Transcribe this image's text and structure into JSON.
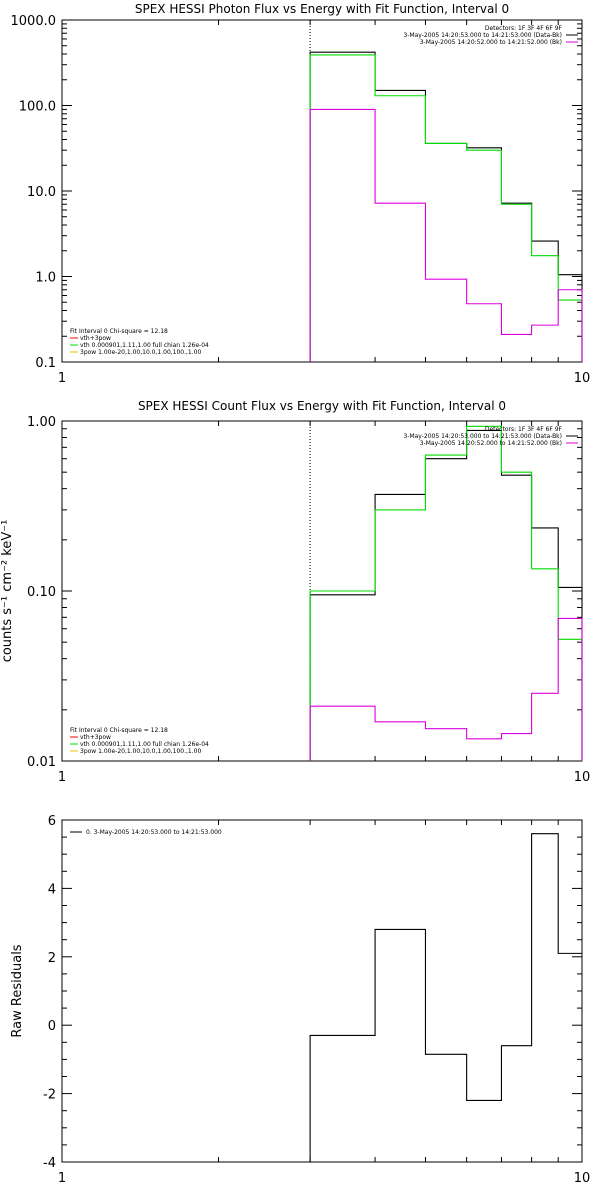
{
  "chart_data": [
    {
      "type": "line",
      "title": "SPEX HESSI Photon Flux vs Energy with Fit Function, Interval 0",
      "xlabel": "",
      "ylabel": "",
      "xscale": "log",
      "yscale": "log",
      "xlim": [
        1,
        10
      ],
      "ylim": [
        0.1,
        1000
      ],
      "x_ticks": [
        "1",
        "10"
      ],
      "y_ticks": [
        {
          "v": 1000,
          "label": "1000.0"
        },
        {
          "v": 100,
          "label": "100.0"
        },
        {
          "v": 10,
          "label": "10.0"
        },
        {
          "v": 1,
          "label": "1.0"
        },
        {
          "v": 0.1,
          "label": "0.1"
        }
      ],
      "vline_x": 3,
      "legend_top": [
        {
          "text": "Detectors: 1F 3F 4F 6F 9F",
          "color": ""
        },
        {
          "text": "3-May-2005 14:20:53.000 to 14:21:53.000 (Data-Bk)",
          "color": "#000000"
        },
        {
          "text": "3-May-2005 14:20:52.000 to 14:21:52.000 (Bk)",
          "color": "#dd00dd"
        }
      ],
      "legend_bottom": [
        {
          "text": "Fit Interval 0   Chi-square = 12.18",
          "color": ""
        },
        {
          "text": "vth+3pow",
          "color": "#ff0000"
        },
        {
          "text": "vth 0.000901,1.11,1.00  full chian 1.26e-04",
          "color": "#00dd00"
        },
        {
          "text": "3pow 1.00e-20,1.00,10.0,1.00,100.,1.00",
          "color": "#e8c800"
        }
      ],
      "edges": [
        3,
        4,
        5,
        6,
        7,
        8,
        9,
        10
      ],
      "series": [
        {
          "name": "Data-Bk",
          "color": "#000000",
          "values": [
            420,
            150,
            36,
            32,
            7.2,
            2.6,
            1.05
          ]
        },
        {
          "name": "vth+3pow",
          "color": "#00dd00",
          "values": [
            390,
            130,
            36,
            30,
            7.0,
            1.75,
            0.53
          ]
        },
        {
          "name": "Bk",
          "color": "#dd00dd",
          "values": [
            90,
            7.2,
            0.93,
            0.48,
            0.21,
            0.27,
            0.7
          ]
        }
      ]
    },
    {
      "type": "line",
      "title": "SPEX HESSI Count Flux vs Energy with Fit Function, Interval 0",
      "xlabel": "",
      "ylabel": "counts s⁻¹ cm⁻² keV⁻¹",
      "xscale": "log",
      "yscale": "log",
      "xlim": [
        1,
        10
      ],
      "ylim": [
        0.01,
        1
      ],
      "x_ticks": [
        "1",
        "10"
      ],
      "y_ticks": [
        {
          "v": 1,
          "label": "1.00"
        },
        {
          "v": 0.1,
          "label": "0.10"
        },
        {
          "v": 0.01,
          "label": "0.01"
        }
      ],
      "vline_x": 3,
      "legend_top": [
        {
          "text": "Detectors: 1F 3F 4F 6F 9F",
          "color": ""
        },
        {
          "text": "3-May-2005 14:20:53.000 to 14:21:53.000 (Data-Bk)",
          "color": "#000000"
        },
        {
          "text": "3-May-2005 14:20:52.000 to 14:21:52.000 (Bk)",
          "color": "#dd00dd"
        }
      ],
      "legend_bottom": [
        {
          "text": "Fit Interval 0   Chi-square = 12.18",
          "color": ""
        },
        {
          "text": "vth+3pow",
          "color": "#ff0000"
        },
        {
          "text": "vth 0.000901,1.11,1.00  full chian 1.26e-04",
          "color": "#00dd00"
        },
        {
          "text": "3pow 1.00e-20,1.00,10.0,1.00,100.,1.00",
          "color": "#e8c800"
        }
      ],
      "edges": [
        3,
        4,
        5,
        6,
        7,
        8,
        9,
        10
      ],
      "series": [
        {
          "name": "Data-Bk",
          "color": "#000000",
          "values": [
            0.095,
            0.37,
            0.6,
            0.88,
            0.48,
            0.235,
            0.105
          ]
        },
        {
          "name": "vth+3pow",
          "color": "#00dd00",
          "values": [
            0.1,
            0.3,
            0.63,
            0.93,
            0.5,
            0.135,
            0.052
          ]
        },
        {
          "name": "Bk",
          "color": "#dd00dd",
          "values": [
            0.021,
            0.017,
            0.0155,
            0.0135,
            0.0145,
            0.025,
            0.069
          ]
        }
      ]
    },
    {
      "type": "line",
      "title": "",
      "xlabel": "",
      "ylabel": "Raw Residuals",
      "xscale": "log",
      "yscale": "linear",
      "xlim": [
        1,
        10
      ],
      "ylim": [
        -4,
        6
      ],
      "x_ticks": [
        "1",
        "10"
      ],
      "y_ticks": [
        {
          "v": 6,
          "label": "6"
        },
        {
          "v": 4,
          "label": "4"
        },
        {
          "v": 2,
          "label": "2"
        },
        {
          "v": 0,
          "label": "0"
        },
        {
          "v": -2,
          "label": "-2"
        },
        {
          "v": -4,
          "label": "-4"
        }
      ],
      "legend_top_left": "0. 3-May-2005 14:20:53.000 to 14:21:53.000",
      "edges": [
        3,
        4,
        5,
        6,
        7,
        8,
        9,
        10
      ],
      "series": [
        {
          "name": "",
          "color": "#000000",
          "values": [
            -0.3,
            2.8,
            -0.85,
            -2.2,
            -0.6,
            5.6,
            2.1
          ]
        }
      ]
    }
  ]
}
